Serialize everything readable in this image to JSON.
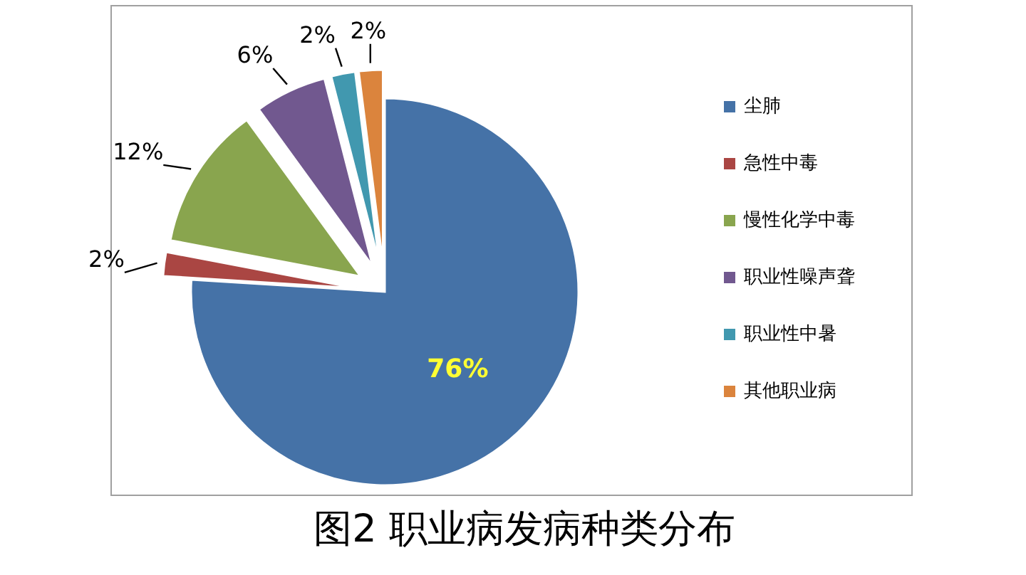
{
  "chart_data": {
    "type": "pie",
    "title": "图2 职业病发病种类分布",
    "categories": [
      "尘肺",
      "急性中毒",
      "慢性化学中毒",
      "职业性噪声聋",
      "职业性中暑",
      "其他职业病"
    ],
    "values": [
      76,
      2,
      12,
      6,
      2,
      2
    ],
    "value_labels": [
      "76%",
      "2%",
      "12%",
      "6%",
      "2%",
      "2%"
    ],
    "colors": [
      "#4572a7",
      "#aa4643",
      "#89a54e",
      "#71588f",
      "#4198af",
      "#db843d"
    ],
    "legend": "right"
  }
}
